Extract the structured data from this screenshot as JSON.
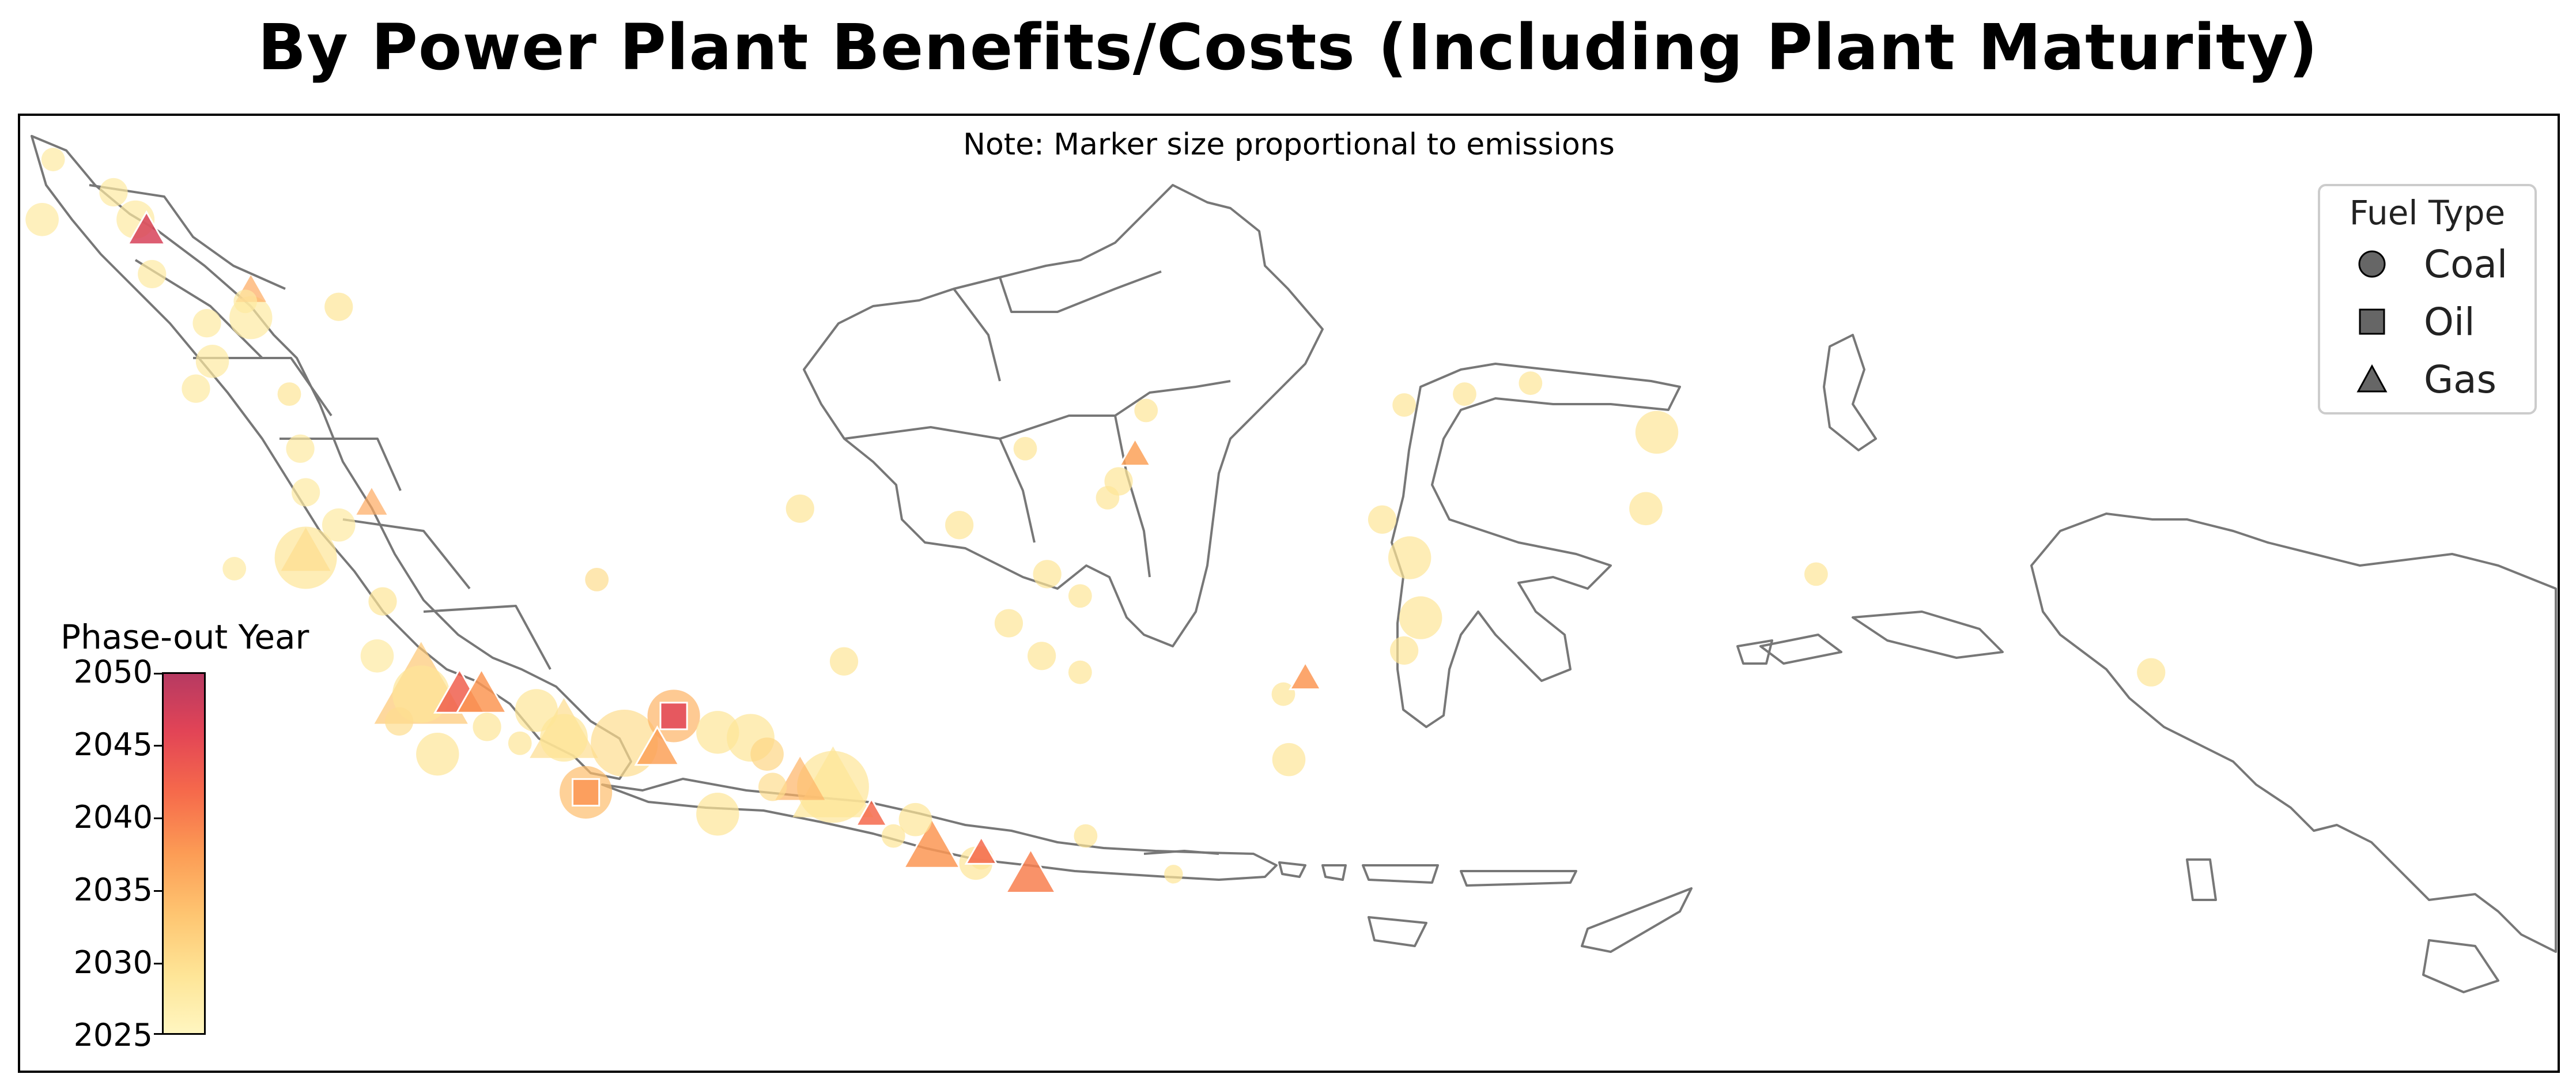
{
  "title": "By Power Plant Benefits/Costs (Including Plant Maturity)",
  "note": "Note: Marker size proportional to emissions",
  "legend": {
    "title": "Fuel Type",
    "items": [
      {
        "label": "Coal",
        "shape": "circle"
      },
      {
        "label": "Oil",
        "shape": "square"
      },
      {
        "label": "Gas",
        "shape": "triangle"
      }
    ]
  },
  "colorbar": {
    "title": "Phase-out Year",
    "ticks": [
      "2050",
      "2045",
      "2040",
      "2035",
      "2030",
      "2025"
    ],
    "range": [
      2025,
      2050
    ]
  },
  "colors": {
    "land_outline": "#777777",
    "legend_marker": "#666666",
    "low_year": "#fff6c0",
    "high_year": "#b73a62"
  },
  "plants": [
    {
      "fuel": "coal",
      "lon": 95.6,
      "lat": 5.5,
      "year": 2028,
      "emissions": 2
    },
    {
      "fuel": "coal",
      "lon": 96.7,
      "lat": 4.9,
      "year": 2028,
      "emissions": 3
    },
    {
      "fuel": "coal",
      "lon": 95.4,
      "lat": 4.4,
      "year": 2028,
      "emissions": 4
    },
    {
      "fuel": "coal",
      "lon": 97.1,
      "lat": 4.4,
      "year": 2028,
      "emissions": 5
    },
    {
      "fuel": "gas",
      "lon": 97.3,
      "lat": 4.2,
      "year": 2047,
      "emissions": 3
    },
    {
      "fuel": "coal",
      "lon": 97.4,
      "lat": 3.4,
      "year": 2028,
      "emissions": 3
    },
    {
      "fuel": "gas",
      "lon": 99.2,
      "lat": 3.1,
      "year": 2036,
      "emissions": 2
    },
    {
      "fuel": "coal",
      "lon": 99.1,
      "lat": 2.9,
      "year": 2028,
      "emissions": 2
    },
    {
      "fuel": "coal",
      "lon": 99.2,
      "lat": 2.6,
      "year": 2028,
      "emissions": 6
    },
    {
      "fuel": "coal",
      "lon": 98.4,
      "lat": 2.5,
      "year": 2028,
      "emissions": 3
    },
    {
      "fuel": "coal",
      "lon": 100.8,
      "lat": 2.8,
      "year": 2029,
      "emissions": 3
    },
    {
      "fuel": "coal",
      "lon": 98.5,
      "lat": 1.8,
      "year": 2028,
      "emissions": 4
    },
    {
      "fuel": "coal",
      "lon": 98.2,
      "lat": 1.3,
      "year": 2028,
      "emissions": 3
    },
    {
      "fuel": "coal",
      "lon": 99.9,
      "lat": 1.2,
      "year": 2029,
      "emissions": 2
    },
    {
      "fuel": "coal",
      "lon": 100.1,
      "lat": 0.2,
      "year": 2028,
      "emissions": 3
    },
    {
      "fuel": "coal",
      "lon": 100.2,
      "lat": -0.6,
      "year": 2028,
      "emissions": 3
    },
    {
      "fuel": "gas",
      "lon": 101.4,
      "lat": -0.8,
      "year": 2036,
      "emissions": 2
    },
    {
      "fuel": "coal",
      "lon": 100.8,
      "lat": -1.2,
      "year": 2028,
      "emissions": 4
    },
    {
      "fuel": "coal",
      "lon": 100.2,
      "lat": -1.8,
      "year": 2029,
      "emissions": 10
    },
    {
      "fuel": "gas",
      "lon": 100.2,
      "lat": -1.7,
      "year": 2030,
      "emissions": 5
    },
    {
      "fuel": "coal",
      "lon": 98.9,
      "lat": -2.0,
      "year": 2028,
      "emissions": 2
    },
    {
      "fuel": "coal",
      "lon": 101.6,
      "lat": -2.6,
      "year": 2029,
      "emissions": 3
    },
    {
      "fuel": "coal",
      "lon": 101.5,
      "lat": -3.6,
      "year": 2028,
      "emissions": 4
    },
    {
      "fuel": "coal",
      "lon": 102.3,
      "lat": -4.3,
      "year": 2029,
      "emissions": 9
    },
    {
      "fuel": "gas",
      "lon": 102.3,
      "lat": -4.2,
      "year": 2033,
      "emissions": 12
    },
    {
      "fuel": "coal",
      "lon": 101.9,
      "lat": -4.8,
      "year": 2030,
      "emissions": 3
    },
    {
      "fuel": "coal",
      "lon": 102.6,
      "lat": -5.4,
      "year": 2029,
      "emissions": 6
    },
    {
      "fuel": "gas",
      "lon": 103.0,
      "lat": -4.3,
      "year": 2043,
      "emissions": 5
    },
    {
      "fuel": "gas",
      "lon": 103.4,
      "lat": -4.3,
      "year": 2038,
      "emissions": 5
    },
    {
      "fuel": "coal",
      "lon": 104.4,
      "lat": -4.6,
      "year": 2029,
      "emissions": 6
    },
    {
      "fuel": "coal",
      "lon": 103.5,
      "lat": -4.9,
      "year": 2029,
      "emissions": 3
    },
    {
      "fuel": "coal",
      "lon": 104.1,
      "lat": -5.2,
      "year": 2029,
      "emissions": 2
    },
    {
      "fuel": "coal",
      "lon": 104.9,
      "lat": -5.1,
      "year": 2029,
      "emissions": 7
    },
    {
      "fuel": "gas",
      "lon": 104.9,
      "lat": -5.0,
      "year": 2030,
      "emissions": 8
    },
    {
      "fuel": "oil",
      "lon": 105.3,
      "lat": -6.1,
      "year": 2038,
      "emissions": 5
    },
    {
      "fuel": "coal",
      "lon": 105.3,
      "lat": -6.1,
      "year": 2034,
      "emissions": 8
    },
    {
      "fuel": "coal",
      "lon": 106.0,
      "lat": -5.2,
      "year": 2030,
      "emissions": 11
    },
    {
      "fuel": "gas",
      "lon": 106.6,
      "lat": -5.3,
      "year": 2037,
      "emissions": 4
    },
    {
      "fuel": "oil",
      "lon": 106.9,
      "lat": -4.7,
      "year": 2046,
      "emissions": 5
    },
    {
      "fuel": "coal",
      "lon": 106.9,
      "lat": -4.7,
      "year": 2035,
      "emissions": 8
    },
    {
      "fuel": "coal",
      "lon": 107.7,
      "lat": -5.0,
      "year": 2029,
      "emissions": 6
    },
    {
      "fuel": "coal",
      "lon": 108.3,
      "lat": -5.1,
      "year": 2029,
      "emissions": 7
    },
    {
      "fuel": "coal",
      "lon": 108.6,
      "lat": -5.4,
      "year": 2031,
      "emissions": 4
    },
    {
      "fuel": "coal",
      "lon": 108.7,
      "lat": -6.0,
      "year": 2030,
      "emissions": 3
    },
    {
      "fuel": "gas",
      "lon": 109.2,
      "lat": -5.9,
      "year": 2035,
      "emissions": 5
    },
    {
      "fuel": "coal",
      "lon": 109.8,
      "lat": -6.0,
      "year": 2029,
      "emissions": 12
    },
    {
      "fuel": "gas",
      "lon": 109.8,
      "lat": -6.0,
      "year": 2029,
      "emissions": 10
    },
    {
      "fuel": "coal",
      "lon": 107.7,
      "lat": -6.5,
      "year": 2029,
      "emissions": 6
    },
    {
      "fuel": "gas",
      "lon": 110.5,
      "lat": -6.5,
      "year": 2042,
      "emissions": 2
    },
    {
      "fuel": "coal",
      "lon": 111.3,
      "lat": -6.6,
      "year": 2029,
      "emissions": 4
    },
    {
      "fuel": "gas",
      "lon": 111.6,
      "lat": -7.1,
      "year": 2038,
      "emissions": 6
    },
    {
      "fuel": "coal",
      "lon": 112.5,
      "lat": -7.3,
      "year": 2029,
      "emissions": 2
    },
    {
      "fuel": "coal",
      "lon": 114.4,
      "lat": -6.9,
      "year": 2029,
      "emissions": 2
    },
    {
      "fuel": "coal",
      "lon": 109.2,
      "lat": -0.9,
      "year": 2029,
      "emissions": 3
    },
    {
      "fuel": "coal",
      "lon": 110.0,
      "lat": -3.7,
      "year": 2029,
      "emissions": 3
    },
    {
      "fuel": "coal",
      "lon": 112.1,
      "lat": -1.2,
      "year": 2029,
      "emissions": 3
    },
    {
      "fuel": "coal",
      "lon": 113.0,
      "lat": -3.0,
      "year": 2029,
      "emissions": 3
    },
    {
      "fuel": "coal",
      "lon": 113.7,
      "lat": -2.1,
      "year": 2029,
      "emissions": 3
    },
    {
      "fuel": "coal",
      "lon": 113.6,
      "lat": -3.6,
      "year": 2029,
      "emissions": 3
    },
    {
      "fuel": "coal",
      "lon": 113.3,
      "lat": 0.2,
      "year": 2029,
      "emissions": 2
    },
    {
      "fuel": "coal",
      "lon": 114.3,
      "lat": -2.5,
      "year": 2029,
      "emissions": 2
    },
    {
      "fuel": "coal",
      "lon": 114.8,
      "lat": -0.7,
      "year": 2029,
      "emissions": 2
    },
    {
      "fuel": "coal",
      "lon": 115.0,
      "lat": -0.4,
      "year": 2029,
      "emissions": 3
    },
    {
      "fuel": "gas",
      "lon": 115.3,
      "lat": 0.1,
      "year": 2037,
      "emissions": 2
    },
    {
      "fuel": "coal",
      "lon": 115.5,
      "lat": 0.9,
      "year": 2029,
      "emissions": 2
    },
    {
      "fuel": "coal",
      "lon": 114.3,
      "lat": -3.9,
      "year": 2029,
      "emissions": 2
    },
    {
      "fuel": "coal",
      "lon": 118.0,
      "lat": -4.3,
      "year": 2029,
      "emissions": 2
    },
    {
      "fuel": "coal",
      "lon": 118.1,
      "lat": -5.5,
      "year": 2029,
      "emissions": 4
    },
    {
      "fuel": "gas",
      "lon": 118.4,
      "lat": -4.0,
      "year": 2038,
      "emissions": 2
    },
    {
      "fuel": "coal",
      "lon": 119.8,
      "lat": -1.1,
      "year": 2029,
      "emissions": 3
    },
    {
      "fuel": "coal",
      "lon": 120.3,
      "lat": -1.8,
      "year": 2029,
      "emissions": 6
    },
    {
      "fuel": "coal",
      "lon": 120.5,
      "lat": -2.9,
      "year": 2029,
      "emissions": 6
    },
    {
      "fuel": "coal",
      "lon": 120.2,
      "lat": -3.5,
      "year": 2029,
      "emissions": 3
    },
    {
      "fuel": "coal",
      "lon": 121.3,
      "lat": 1.2,
      "year": 2029,
      "emissions": 2
    },
    {
      "fuel": "coal",
      "lon": 122.5,
      "lat": 1.4,
      "year": 2029,
      "emissions": 2
    },
    {
      "fuel": "coal",
      "lon": 120.2,
      "lat": 1.0,
      "year": 2029,
      "emissions": 2
    },
    {
      "fuel": "coal",
      "lon": 124.8,
      "lat": 0.5,
      "year": 2029,
      "emissions": 6
    },
    {
      "fuel": "coal",
      "lon": 124.6,
      "lat": -0.9,
      "year": 2029,
      "emissions": 4
    },
    {
      "fuel": "coal",
      "lon": 127.7,
      "lat": -2.1,
      "year": 2029,
      "emissions": 2
    },
    {
      "fuel": "coal",
      "lon": 133.8,
      "lat": -3.9,
      "year": 2029,
      "emissions": 3
    },
    {
      "fuel": "coal",
      "lon": 110.9,
      "lat": -6.9,
      "year": 2029,
      "emissions": 2
    },
    {
      "fuel": "gas",
      "lon": 113.4,
      "lat": -7.6,
      "year": 2040,
      "emissions": 5
    },
    {
      "fuel": "coal",
      "lon": 112.4,
      "lat": -7.4,
      "year": 2029,
      "emissions": 4
    },
    {
      "fuel": "gas",
      "lon": 112.5,
      "lat": -7.2,
      "year": 2042,
      "emissions": 2
    },
    {
      "fuel": "coal",
      "lon": 116.0,
      "lat": -7.6,
      "year": 2029,
      "emissions": 1
    },
    {
      "fuel": "coal",
      "lon": 105.5,
      "lat": -2.2,
      "year": 2030,
      "emissions": 2
    }
  ]
}
